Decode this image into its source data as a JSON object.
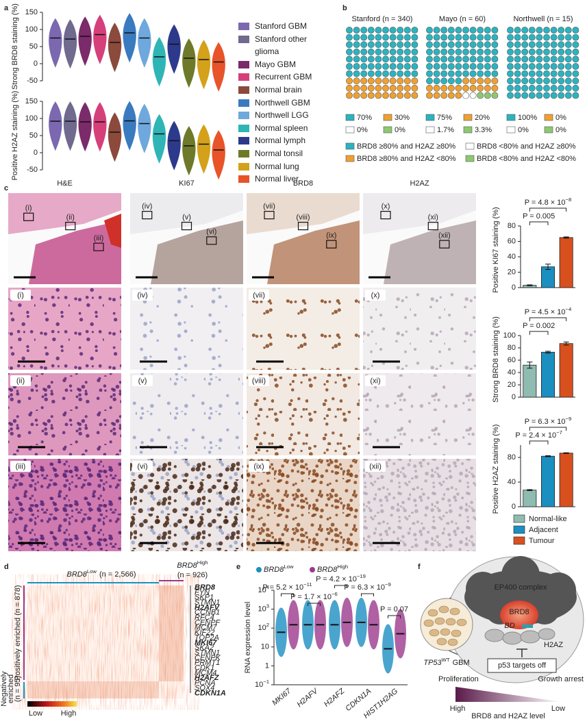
{
  "panel_labels": [
    "a",
    "b",
    "c",
    "d",
    "e",
    "f"
  ],
  "chart_data": [
    {
      "type": "violin",
      "categories": [
        "Stanford GBM",
        "Stanford other glioma",
        "Mayo GBM",
        "Recurrent GBM",
        "Normal brain",
        "Northwell GBM",
        "Northwell LGG",
        "Normal spleen",
        "Normal lymph",
        "Normal tonsil",
        "Normal lung",
        "Normal liver"
      ],
      "colors": [
        "#7b68b0",
        "#6f6a8e",
        "#7b2a6a",
        "#d6407a",
        "#8b4a3c",
        "#3a7bc0",
        "#6fa8dc",
        "#2fb5b5",
        "#2d3a8c",
        "#6e7a2a",
        "#d4a11a",
        "#e8542a"
      ],
      "panels": [
        {
          "y_label": "Strong BRD8 staining (%)",
          "values": [
            75,
            72,
            80,
            85,
            62,
            90,
            75,
            20,
            57,
            16,
            12,
            5
          ],
          "ylim": [
            -50,
            150
          ],
          "yticks": [
            -50,
            0,
            50,
            100,
            150
          ]
        },
        {
          "y_label": "Positive H2AZ staining (%)",
          "values": [
            92,
            92,
            90,
            90,
            60,
            93,
            85,
            55,
            35,
            20,
            25,
            8
          ],
          "ylim": [
            -50,
            150
          ],
          "yticks": [
            -50,
            0,
            50,
            100,
            150
          ]
        }
      ]
    },
    {
      "type": "waffle",
      "categories": [
        "BRD8 ≥80% and H2AZ ≥80%",
        "BRD8 ≥80% and H2AZ <80%",
        "BRD8 <80% and H2AZ ≥80%",
        "BRD8 <80% and H2AZ <80%"
      ],
      "colors": [
        "#2bb3c0",
        "#f0a030",
        "#ffffff",
        "#8cc870"
      ],
      "groups": [
        {
          "title": "Stanford (n = 340)",
          "values": [
            70,
            30,
            0,
            0
          ],
          "value_labels": [
            "70%",
            "30%",
            "0%",
            "0%"
          ]
        },
        {
          "title": "Mayo (n = 60)",
          "values": [
            75,
            20,
            1.7,
            3.3
          ],
          "value_labels": [
            "75%",
            "20%",
            "1.7%",
            "3.3%"
          ]
        },
        {
          "title": "Northwell (n = 15)",
          "values": [
            100,
            0,
            0,
            0
          ],
          "value_labels": [
            "100%",
            "0%",
            "0%",
            "0%"
          ]
        }
      ]
    },
    {
      "type": "bar",
      "y_label": "Positive KI67 staining (%)",
      "categories": [
        "Normal-like",
        "Adjacent",
        "Tumour"
      ],
      "colors": [
        "#8fbcb0",
        "#1b8fc0",
        "#d9501f"
      ],
      "values": [
        3,
        27,
        65
      ],
      "errors": [
        0.6,
        3.5,
        0.8
      ],
      "ylim": [
        0,
        80
      ],
      "yticks": [
        0,
        20,
        40,
        60,
        80
      ],
      "annotations": [
        {
          "base": "P = 4.8 × 10",
          "exp": "−8"
        },
        {
          "base": "P = 0.005"
        }
      ]
    },
    {
      "type": "bar",
      "y_label": "Strong BRD8 staining (%)",
      "categories": [
        "Normal-like",
        "Adjacent",
        "Tumour"
      ],
      "colors": [
        "#8fbcb0",
        "#1b8fc0",
        "#d9501f"
      ],
      "values": [
        52,
        73,
        87
      ],
      "errors": [
        5,
        1.5,
        2.5
      ],
      "ylim": [
        0,
        100
      ],
      "yticks": [
        0,
        20,
        40,
        60,
        80,
        100
      ],
      "annotations": [
        {
          "base": "P = 4.5 × 10",
          "exp": "−4"
        },
        {
          "base": "P = 0.002"
        }
      ]
    },
    {
      "type": "bar",
      "y_label": "Positive H2AZ staining (%)",
      "categories": [
        "Normal-like",
        "Adjacent",
        "Tumour"
      ],
      "colors": [
        "#8fbcb0",
        "#1b8fc0",
        "#d9501f"
      ],
      "values": [
        27,
        82,
        87
      ],
      "errors": [
        0.8,
        0.8,
        0.6
      ],
      "ylim": [
        0,
        100
      ],
      "yticks": [
        0,
        40,
        80
      ],
      "annotations": [
        {
          "base": "P = 6.3 × 10",
          "exp": "−9"
        },
        {
          "base": "P = 2.4 × 10",
          "exp": "−7"
        }
      ]
    },
    {
      "type": "strip",
      "y_label": "RNA expression level",
      "log": true,
      "categories": [
        "MKI67",
        "H2AFV",
        "H2AFZ",
        "CDKN1A",
        "HIST1H2AG"
      ],
      "series": [
        {
          "name": "BRD8",
          "name_sup": "Low",
          "color": "#1b8fc0",
          "values": [
            60,
            150,
            150,
            200,
            8
          ]
        },
        {
          "name": "BRD8",
          "name_sup": "High",
          "color": "#9b3a8c",
          "values": [
            150,
            150,
            200,
            150,
            50
          ]
        }
      ],
      "ylim": [
        0.1,
        10000
      ],
      "yticks": [
        {
          "value": 0.1,
          "label": "10",
          "sup": "−1"
        },
        1,
        10,
        {
          "value": 100,
          "label": "10",
          "sup": "2"
        },
        {
          "value": 1000,
          "label": "10",
          "sup": "3"
        },
        {
          "value": 10000,
          "label": "10",
          "sup": "4"
        }
      ],
      "annotations": [
        {
          "base": "P = 5.2 × 10",
          "exp": "−11"
        },
        {
          "base": "P = 1.7 × 10",
          "exp": "−6"
        },
        {
          "base": "P = 4.2 × 10",
          "exp": "−19"
        },
        {
          "base": "P = 6.3 × 10",
          "exp": "−9"
        },
        {
          "base": "P = 0.07"
        }
      ]
    }
  ],
  "images": {
    "columns": [
      "H&E",
      "KI67",
      "BRD8",
      "H2AZ"
    ],
    "regions": [
      "(i)",
      "(ii)",
      "(iii)",
      "(iv)",
      "(v)",
      "(vi)",
      "(vii)",
      "(viii)",
      "(ix)",
      "(x)",
      "(xi)",
      "(xii)"
    ]
  },
  "heatmap": {
    "groups": [
      {
        "gene": "BRD8",
        "sup": "Low",
        "n": "(n = 2,566)"
      },
      {
        "gene": "BRD8",
        "sup": "High",
        "n": "(n = 926)"
      }
    ],
    "row_groups": [
      [
        "Positively enriched (n = 878)"
      ],
      [
        "Negatively",
        "enriched",
        "(n = 95)"
      ]
    ],
    "genes": [
      {
        "name": "BRD8",
        "bold": true
      },
      {
        "name": "FYN"
      },
      {
        "name": "SKP1"
      },
      {
        "name": "STMN1"
      },
      {
        "name": "H2AFV",
        "bold": true
      },
      {
        "name": "CCNB1"
      },
      {
        "name": "RFC4"
      },
      {
        "name": "CENPF"
      },
      {
        "name": "MCM7"
      },
      {
        "name": "KIF22"
      },
      {
        "name": "TOP2A"
      },
      {
        "name": "MKI67",
        "bold": true
      },
      {
        "name": "SKA2"
      },
      {
        "name": "STMN1"
      },
      {
        "name": "CENPK"
      },
      {
        "name": "PRMT1"
      },
      {
        "name": "CDK1"
      },
      {
        "name": "MCM4"
      },
      {
        "name": "H2AFZ",
        "bold": true
      },
      {
        "name": "PCNA"
      },
      {
        "name": "SOX4"
      },
      {
        "name": "CDKN1A",
        "bold": true
      }
    ],
    "colorbar": [
      "Low",
      "High"
    ]
  },
  "diagram": {
    "complex": "EP400 complex",
    "protein": "BRD8",
    "domain": "BD",
    "histone": "H2AZ",
    "effect": "p53 targets off",
    "tumour": {
      "gene": "TP53",
      "sup": "WT",
      "rest": "GBM"
    },
    "gradient_left": "Proliferation",
    "gradient_right": "Growth arrest",
    "low_high": [
      "High",
      "Low"
    ],
    "gradient_label": "BRD8 and H2AZ level"
  }
}
